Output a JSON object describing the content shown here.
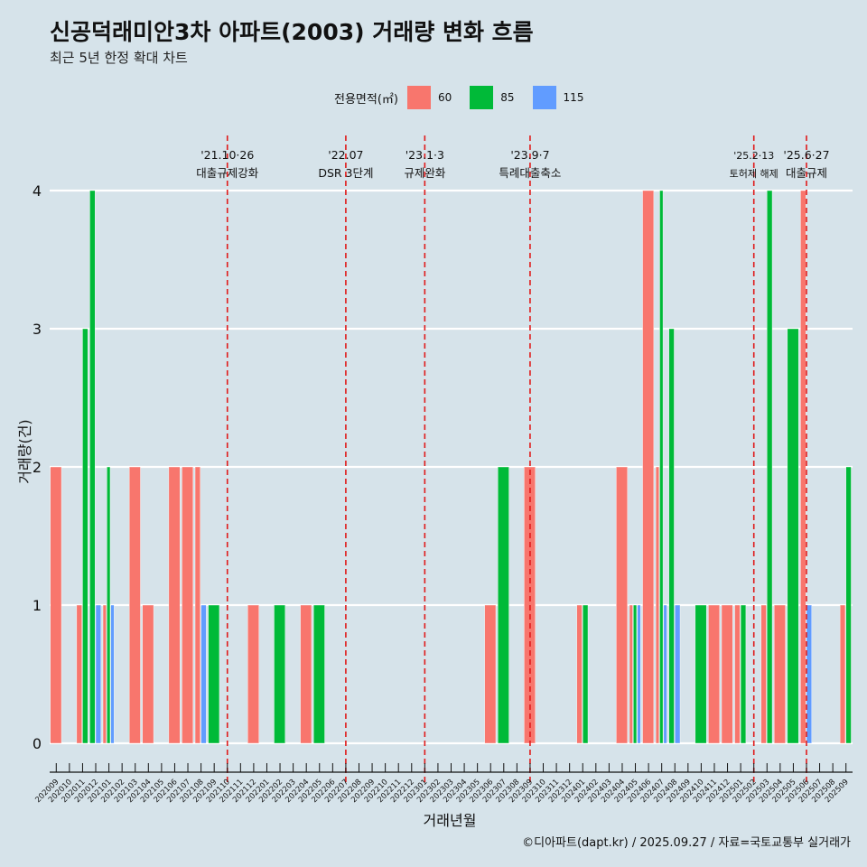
{
  "title": "신공덕래미안3차 아파트(2003) 거래량 변화 흐름",
  "subtitle": "최근 5년 한정 확대 차트",
  "caption": "©디아파트(dapt.kr) / 2025.09.27 / 자료=국토교통부 실거래가",
  "colors": {
    "background": "#d6e3ea",
    "grid": "#ffffff",
    "event_line": "#e01a1a",
    "s60": "#f8766d",
    "s85": "#00ba38",
    "s115": "#619cff"
  },
  "chart_data": {
    "type": "bar",
    "xlabel": "거래년월",
    "ylabel": "거래량(건)",
    "ylim": [
      -0.2,
      4.4
    ],
    "yticks": [
      0,
      1,
      2,
      3,
      4
    ],
    "legend": {
      "title": "전용면적(㎡)",
      "position": "top",
      "entries": [
        "60",
        "85",
        "115"
      ]
    },
    "grid": true,
    "categories": [
      "202009",
      "202010",
      "202011",
      "202012",
      "202101",
      "202102",
      "202103",
      "202104",
      "202105",
      "202106",
      "202107",
      "202108",
      "202109",
      "202110",
      "202111",
      "202112",
      "202201",
      "202202",
      "202203",
      "202204",
      "202205",
      "202206",
      "202207",
      "202208",
      "202209",
      "202210",
      "202211",
      "202212",
      "202301",
      "202302",
      "202303",
      "202304",
      "202305",
      "202306",
      "202307",
      "202308",
      "202309",
      "202310",
      "202311",
      "202312",
      "202401",
      "202402",
      "202403",
      "202404",
      "202405",
      "202406",
      "202407",
      "202408",
      "202409",
      "202410",
      "202411",
      "202412",
      "202501",
      "202502",
      "202503",
      "202504",
      "202505",
      "202506",
      "202507",
      "202508",
      "202509"
    ],
    "series": [
      {
        "name": "60",
        "color": "#f8766d",
        "values": [
          2,
          0,
          1,
          0,
          1,
          0,
          2,
          1,
          0,
          2,
          2,
          2,
          0,
          0,
          0,
          1,
          0,
          0,
          0,
          1,
          0,
          0,
          0,
          0,
          0,
          0,
          0,
          0,
          0,
          0,
          0,
          0,
          0,
          1,
          0,
          0,
          2,
          0,
          0,
          0,
          1,
          0,
          0,
          2,
          1,
          4,
          2,
          0,
          0,
          0,
          1,
          1,
          1,
          0,
          1,
          1,
          0,
          4,
          0,
          0,
          1
        ]
      },
      {
        "name": "85",
        "color": "#00ba38",
        "values": [
          0,
          0,
          3,
          4,
          2,
          0,
          0,
          0,
          0,
          0,
          0,
          0,
          1,
          0,
          0,
          0,
          0,
          1,
          0,
          0,
          1,
          0,
          0,
          0,
          0,
          0,
          0,
          0,
          0,
          0,
          0,
          0,
          0,
          0,
          2,
          0,
          0,
          0,
          0,
          0,
          1,
          0,
          0,
          0,
          1,
          0,
          4,
          3,
          0,
          1,
          0,
          0,
          1,
          0,
          4,
          0,
          3,
          0,
          0,
          0,
          2
        ]
      },
      {
        "name": "115",
        "color": "#619cff",
        "values": [
          0,
          0,
          0,
          1,
          1,
          0,
          0,
          0,
          0,
          0,
          0,
          1,
          0,
          0,
          0,
          0,
          0,
          0,
          0,
          0,
          0,
          0,
          0,
          0,
          0,
          0,
          0,
          0,
          0,
          0,
          0,
          0,
          0,
          0,
          0,
          0,
          0,
          0,
          0,
          0,
          0,
          0,
          0,
          0,
          1,
          0,
          1,
          1,
          0,
          0,
          0,
          0,
          0,
          0,
          0,
          0,
          0,
          1,
          0,
          0,
          0
        ]
      }
    ],
    "events": [
      {
        "x": "202110",
        "date": "'21.10·26",
        "label": "대출규제강화"
      },
      {
        "x": "202207",
        "date": "'22.07",
        "label": "DSR 3단계"
      },
      {
        "x": "202301",
        "date": "'23.1·3",
        "label": "규제완화"
      },
      {
        "x": "202309",
        "date": "'23.9·7",
        "label": "특례대출축소"
      },
      {
        "x": "202502",
        "date": "'25.2·13",
        "label": "토허제 해제"
      },
      {
        "x": "202506",
        "date": "'25.6·27",
        "label": "대출규제"
      }
    ]
  }
}
